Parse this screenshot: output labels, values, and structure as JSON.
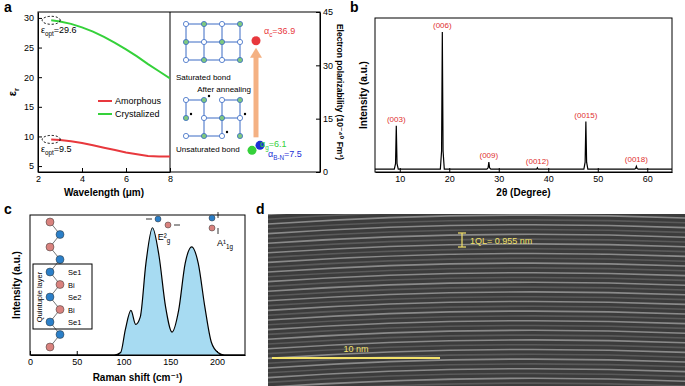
{
  "chart_data": [
    {
      "panel": "a",
      "type": "line",
      "x_label": "Wavelength (μm)",
      "y_label": "εr",
      "x": [
        2.6,
        3,
        3.5,
        4,
        4.5,
        5,
        5.5,
        6,
        6.5,
        7,
        7.5,
        8
      ],
      "series": [
        {
          "name": "Amorphous",
          "color": "#e8383d",
          "values": [
            9.5,
            9.4,
            9.2,
            8.9,
            8.5,
            8.1,
            7.7,
            7.3,
            7.0,
            6.7,
            6.6,
            6.6
          ]
        },
        {
          "name": "Crystalized",
          "color": "#35d13a",
          "values": [
            29.6,
            29.4,
            29.0,
            28.4,
            27.7,
            26.8,
            25.8,
            24.7,
            23.5,
            22.2,
            21.0,
            19.8
          ]
        }
      ],
      "xlim": [
        2,
        8
      ],
      "xticks": [
        2,
        4,
        6,
        8
      ],
      "ylim": [
        4,
        31
      ],
      "yticks": [
        5,
        10,
        15,
        20,
        25,
        30
      ],
      "legend": "center right",
      "annotations": [
        {
          "text": "εopt=29.6",
          "x": 2.6,
          "y": 29.6
        },
        {
          "text": "εopt=9.5",
          "x": 2.6,
          "y": 9.5
        }
      ]
    },
    {
      "type": "scatter",
      "y_label": "Electron polarizability (10⁻⁴⁰ Fm²)",
      "values": [
        36.9,
        6.1,
        7.5
      ],
      "value_labels": [
        "αc=36.9",
        "αg=6.1",
        "αB-N=7.5"
      ],
      "colors": [
        "#e8383d",
        "#35d13a",
        "#1c2fd6"
      ],
      "data_labels": true,
      "ylim": [
        0,
        45
      ],
      "yticks": [
        0,
        15,
        30,
        45
      ],
      "annotations": [
        "Saturated bond",
        "After annealing",
        "Unsaturated bond"
      ]
    },
    {
      "panel": "b",
      "type": "line",
      "x_label": "2θ (Degree)",
      "y_label": "Intensity (a.u.)",
      "x": [
        5,
        8.9,
        9.15,
        9.3,
        9.45,
        9.7,
        18.2,
        18.45,
        18.6,
        18.75,
        19.0,
        27.6,
        27.85,
        28.0,
        28.15,
        28.4,
        37.4,
        37.65,
        37.8,
        37.95,
        38.2,
        47.2,
        47.45,
        47.6,
        47.75,
        48.0,
        57.4,
        57.65,
        57.8,
        57.95,
        58.2,
        65
      ],
      "series": [
        {
          "color": "#000000",
          "values": [
            0.02,
            0.02,
            0.06,
            0.33,
            0.06,
            0.02,
            0.02,
            0.15,
            1.0,
            0.15,
            0.02,
            0.02,
            0.03,
            0.07,
            0.03,
            0.02,
            0.02,
            0.02,
            0.03,
            0.02,
            0.02,
            0.02,
            0.07,
            0.36,
            0.07,
            0.02,
            0.02,
            0.025,
            0.04,
            0.025,
            0.02,
            0.02
          ]
        }
      ],
      "xlim": [
        5,
        65
      ],
      "xticks": [
        10,
        20,
        30,
        40,
        50,
        60
      ],
      "ylim": [
        0,
        1.1
      ],
      "tick_labels": "x",
      "peaks": [
        {
          "label": "(003)",
          "x": 9.3,
          "y": 0.33
        },
        {
          "label": "(006)",
          "x": 18.6,
          "y": 1.0
        },
        {
          "label": "(009)",
          "x": 28.0,
          "y": 0.07
        },
        {
          "label": "(0012)",
          "x": 37.8,
          "y": 0.03
        },
        {
          "label": "(0015)",
          "x": 47.6,
          "y": 0.36
        },
        {
          "label": "(0018)",
          "x": 57.8,
          "y": 0.04
        }
      ]
    },
    {
      "panel": "c",
      "type": "area",
      "x_label": "Raman shift (cm⁻¹)",
      "y_label": "Intensity (a.u.)",
      "x": [
        0,
        90,
        97,
        102,
        108,
        113,
        118,
        124,
        131,
        138,
        145,
        152,
        159,
        166,
        173,
        180,
        187,
        194,
        201,
        208,
        230
      ],
      "series": [
        {
          "color": "#a7dbf2",
          "values": [
            0,
            0,
            0.02,
            0.2,
            0.35,
            0.24,
            0.3,
            0.72,
            1.0,
            0.78,
            0.38,
            0.18,
            0.35,
            0.72,
            0.85,
            0.72,
            0.38,
            0.1,
            0.02,
            0,
            0
          ]
        }
      ],
      "xlim": [
        0,
        230
      ],
      "xticks": [
        0,
        50,
        100,
        150,
        200
      ],
      "ylim": [
        0,
        1.1
      ],
      "tick_labels": "x",
      "mode_labels": [
        "E²g",
        "A¹1g"
      ],
      "structure": {
        "title": "Quintuple layer",
        "labels": [
          "Se1",
          "Bi",
          "Se2",
          "Bi",
          "Se1"
        ]
      }
    }
  ],
  "micrograph": {
    "panel": "d",
    "spacing_label": "1QL= 0.955 nm",
    "scale_label": "10 nm"
  }
}
